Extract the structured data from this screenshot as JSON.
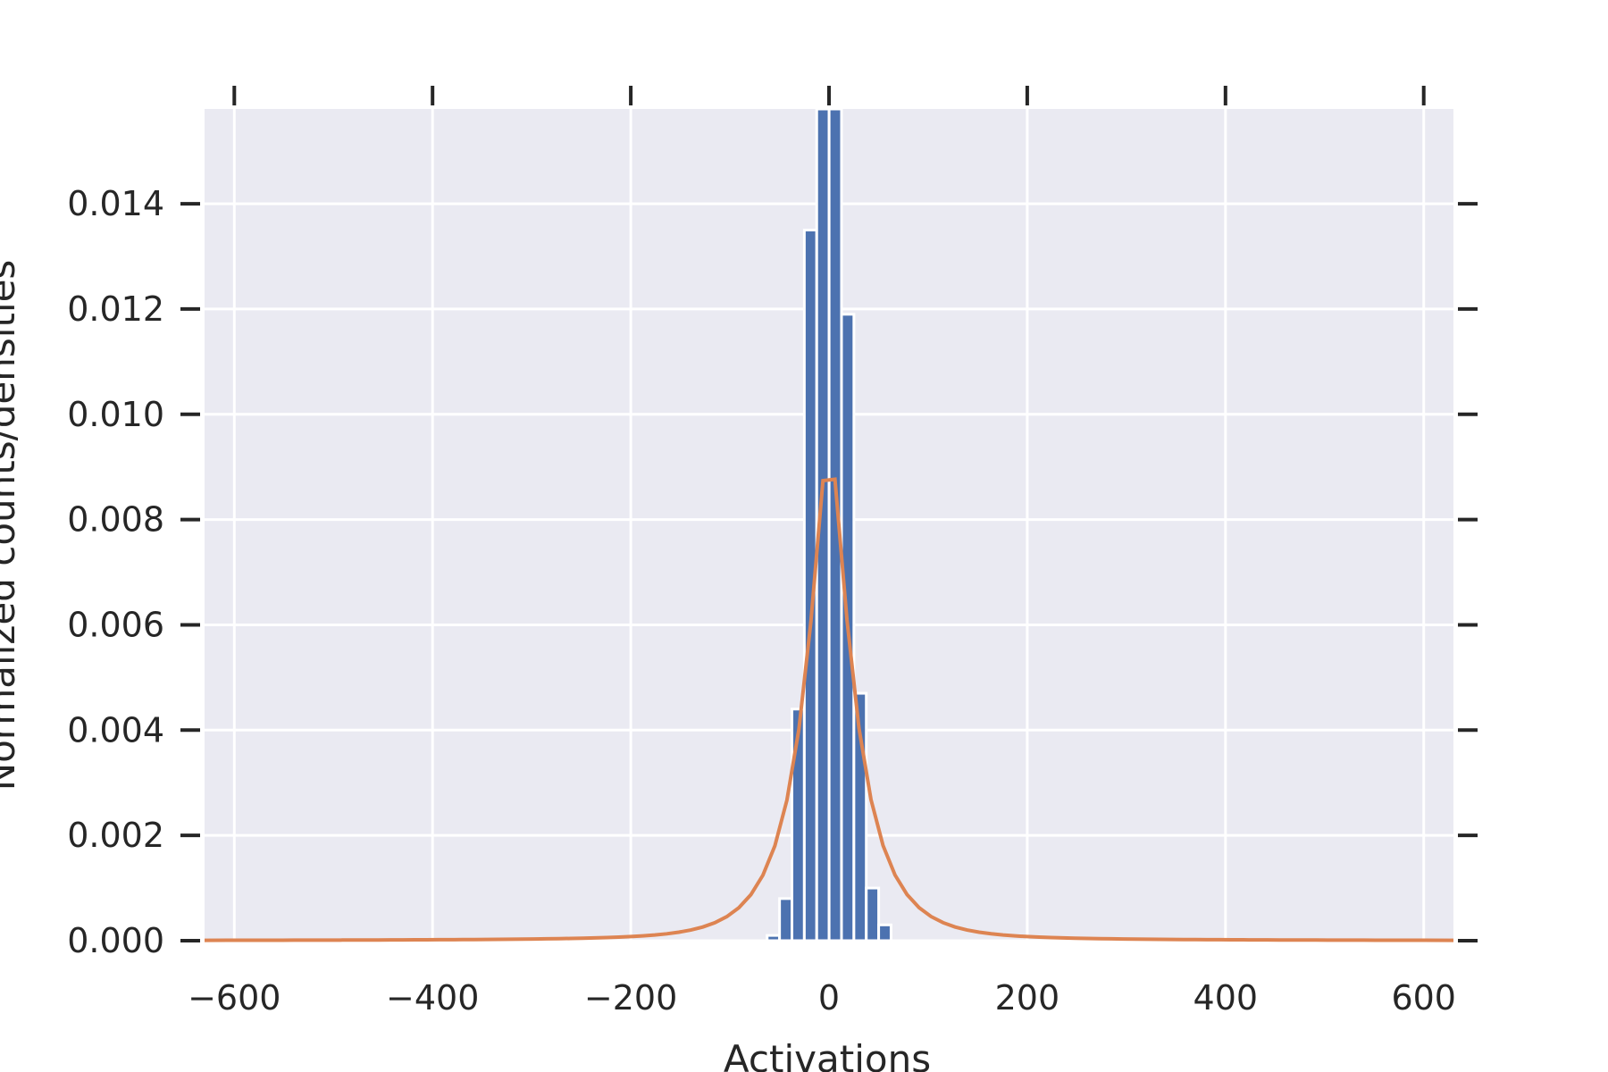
{
  "chart_data": {
    "type": "bar",
    "title": "",
    "xlabel": "Activations",
    "ylabel": "Normalized counts/densities",
    "xlim": [
      -630,
      630
    ],
    "ylim": [
      0,
      0.0158
    ],
    "x_ticks": [
      -600,
      -400,
      -200,
      0,
      200,
      400,
      600
    ],
    "x_tick_labels": [
      "−600",
      "−400",
      "−200",
      "0",
      "200",
      "400",
      "600"
    ],
    "y_ticks": [
      0,
      0.002,
      0.004,
      0.006,
      0.008,
      0.01,
      0.012,
      0.014
    ],
    "y_tick_labels": [
      "0.000",
      "0.002",
      "0.004",
      "0.006",
      "0.008",
      "0.010",
      "0.012",
      "0.014"
    ],
    "grid": true,
    "legend": "none",
    "colors": {
      "background": "#eaeaf2",
      "grid": "#ffffff",
      "bars": "#4c72b0",
      "bar_edge": "#ffffff",
      "curve": "#dd8452",
      "tick_mark": "#262626"
    },
    "histogram": {
      "bin_edges": [
        -62.4,
        -49.9,
        -37.4,
        -24.9,
        -12.4,
        0.1,
        12.6,
        25.1,
        37.6,
        50.1,
        62.6
      ],
      "values": [
        0.0001,
        0.0008,
        0.0044,
        0.0135,
        0.0158,
        0.0158,
        0.0119,
        0.0047,
        0.001,
        0.0003
      ]
    },
    "curve": {
      "kind": "density",
      "location": 0,
      "peak": 0.0101,
      "x_range": [
        -630,
        630
      ]
    }
  }
}
